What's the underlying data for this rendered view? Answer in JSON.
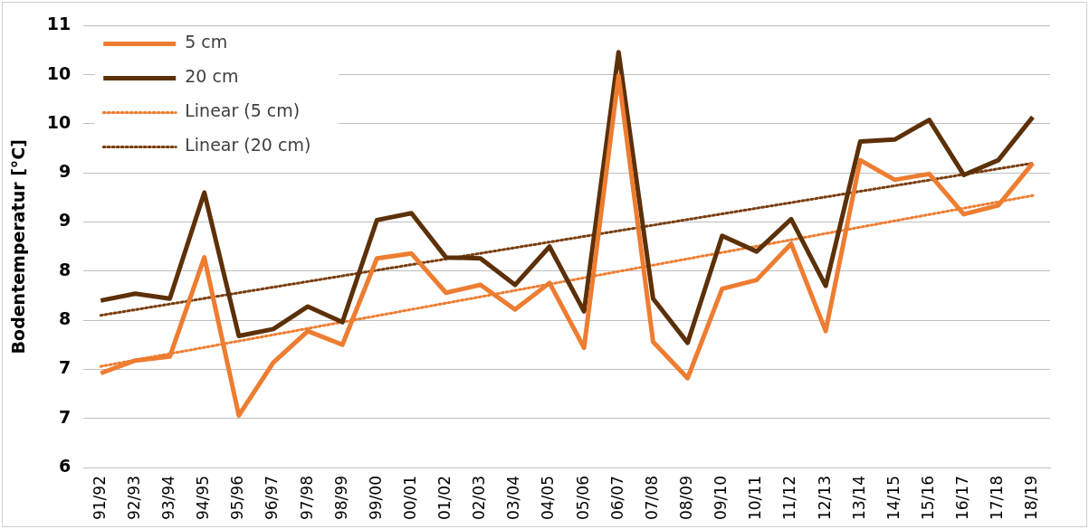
{
  "chart_data": {
    "type": "line",
    "ylabel": "Bodentemperatur [°C]",
    "categories": [
      "91/92",
      "92/93",
      "93/94",
      "94/95",
      "95/96",
      "96/97",
      "97/98",
      "98/99",
      "99/00",
      "00/01",
      "01/02",
      "02/03",
      "03/04",
      "04/05",
      "05/06",
      "06/07",
      "07/08",
      "08/09",
      "09/10",
      "10/11",
      "11/12",
      "12/13",
      "13/14",
      "14/15",
      "15/16",
      "16/17",
      "17/18",
      "18/19"
    ],
    "series": [
      {
        "name": "5 cm",
        "color": "#ed7d31",
        "line_style": "solid",
        "values": [
          6.96,
          7.09,
          7.13,
          8.14,
          6.53,
          7.07,
          7.39,
          7.25,
          8.13,
          8.18,
          7.78,
          7.86,
          7.61,
          7.88,
          7.22,
          9.99,
          7.28,
          6.91,
          7.82,
          7.91,
          8.28,
          7.39,
          9.13,
          8.93,
          8.99,
          8.58,
          8.67,
          9.1
        ]
      },
      {
        "name": "20 cm",
        "color": "#5c3008",
        "line_style": "solid",
        "values": [
          7.7,
          7.77,
          7.72,
          8.8,
          7.34,
          7.41,
          7.64,
          7.48,
          8.52,
          8.59,
          8.14,
          8.13,
          7.86,
          8.25,
          7.59,
          10.23,
          7.72,
          7.27,
          8.36,
          8.2,
          8.53,
          7.85,
          9.32,
          9.34,
          9.54,
          8.98,
          9.13,
          9.57
        ]
      },
      {
        "name": "Linear (5 cm)",
        "type": "line",
        "color": "#ed7d31",
        "line_style": "dotted",
        "x": [
          "91/92",
          "18/19"
        ],
        "values": [
          7.03,
          8.77
        ]
      },
      {
        "name": "Linear (20 cm)",
        "type": "line",
        "color": "#7a3e10",
        "line_style": "dotted",
        "x": [
          "91/92",
          "18/19"
        ],
        "values": [
          7.55,
          9.1
        ]
      }
    ],
    "ylim": [
      6,
      10.5
    ],
    "yticks": [
      6,
      {
        "value": 6.5,
        "label": "7"
      },
      7,
      {
        "value": 7.5,
        "label": "8"
      },
      8,
      {
        "value": 8.5,
        "label": "9"
      },
      9,
      {
        "value": 9.5,
        "label": "10"
      },
      10,
      {
        "value": 10.5,
        "label": "11"
      }
    ],
    "grid": "y",
    "legend": "top left",
    "marker": "none"
  }
}
